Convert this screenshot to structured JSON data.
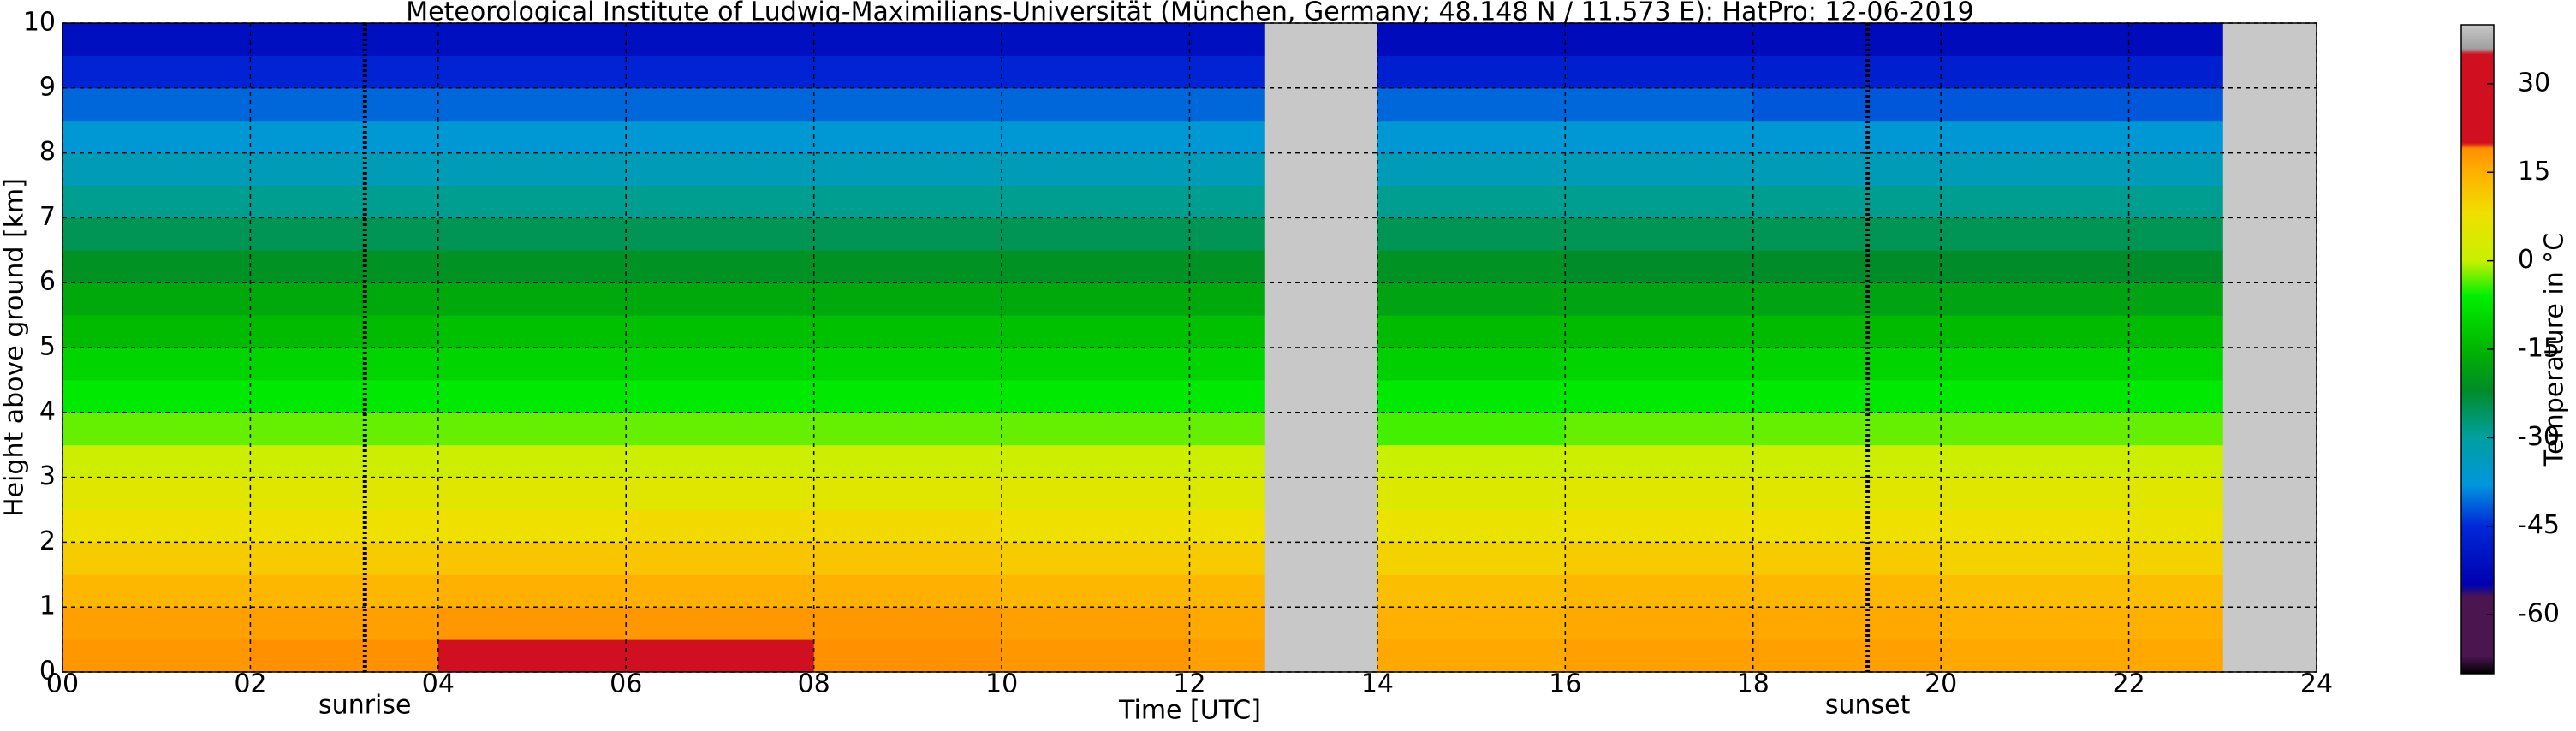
{
  "chart_data": {
    "type": "heatmap",
    "title": "Meteorological Institute of Ludwig-Maximilians-Universität (München, Germany; 48.148 N / 11.573 E):    HatPro: 12-06-2019",
    "xlabel": "Time [UTC]",
    "ylabel": "Height above ground [km]",
    "colorbar_label": "Temperature in °C",
    "x_bins": [
      0,
      2,
      4,
      6,
      8,
      10,
      12,
      12.8,
      14,
      16,
      18,
      20,
      22,
      23
    ],
    "y_bins": [
      0,
      0.5,
      1,
      1.5,
      2,
      2.5,
      3,
      3.5,
      4,
      4.5,
      5,
      5.5,
      6,
      6.5,
      7,
      7.5,
      8,
      8.5,
      9,
      9.5,
      10
    ],
    "z": [
      [
        18,
        19,
        20,
        20,
        19,
        18,
        17,
        null,
        16,
        17,
        17,
        16,
        16
      ],
      [
        17,
        17,
        18,
        18,
        18,
        17,
        16,
        null,
        15,
        16,
        16,
        15,
        15
      ],
      [
        14,
        14,
        15,
        15,
        15,
        14,
        14,
        null,
        13,
        14,
        14,
        13,
        13
      ],
      [
        11,
        11,
        12,
        12,
        12,
        11,
        11,
        null,
        10,
        11,
        11,
        10,
        10
      ],
      [
        8,
        8,
        8,
        9,
        9,
        8,
        8,
        null,
        7,
        8,
        8,
        8,
        7
      ],
      [
        5,
        5,
        5,
        5,
        5,
        5,
        4,
        null,
        4,
        5,
        5,
        5,
        5
      ],
      [
        1,
        1,
        1,
        1,
        1,
        1,
        1,
        null,
        0,
        1,
        1,
        1,
        1
      ],
      [
        -3,
        -3,
        -3,
        -3,
        -3,
        -3,
        -3,
        null,
        -4,
        -3,
        -3,
        -3,
        -3
      ],
      [
        -7,
        -7,
        -7,
        -7,
        -7,
        -7,
        -7,
        null,
        -7,
        -7,
        -7,
        -7,
        -7
      ],
      [
        -10,
        -10,
        -10,
        -10,
        -10,
        -10,
        -10,
        null,
        -11,
        -10,
        -10,
        -10,
        -10
      ],
      [
        -14,
        -14,
        -13,
        -13,
        -13,
        -13,
        -13,
        null,
        -14,
        -14,
        -14,
        -14,
        -14
      ],
      [
        -17,
        -17,
        -17,
        -17,
        -17,
        -17,
        -17,
        null,
        -18,
        -18,
        -18,
        -18,
        -18
      ],
      [
        -21,
        -21,
        -21,
        -21,
        -21,
        -21,
        -21,
        null,
        -21,
        -22,
        -22,
        -22,
        -22
      ],
      [
        -25,
        -25,
        -25,
        -25,
        -25,
        -25,
        -25,
        null,
        -25,
        -25,
        -25,
        -25,
        -25
      ],
      [
        -29,
        -29,
        -29,
        -29,
        -29,
        -29,
        -29,
        null,
        -29,
        -29,
        -29,
        -29,
        -29
      ],
      [
        -33,
        -33,
        -33,
        -33,
        -33,
        -33,
        -33,
        null,
        -33,
        -33,
        -33,
        -33,
        -33
      ],
      [
        -37,
        -37,
        -37,
        -37,
        -37,
        -37,
        -37,
        null,
        -37,
        -37,
        -37,
        -37,
        -37
      ],
      [
        -41,
        -41,
        -41,
        -41,
        -41,
        -41,
        -41,
        null,
        -41,
        -41,
        -42,
        -42,
        -42
      ],
      [
        -46,
        -46,
        -46,
        -46,
        -46,
        -46,
        -46,
        null,
        -47,
        -47,
        -47,
        -47,
        -47
      ],
      [
        -51,
        -51,
        -51,
        -51,
        -51,
        -51,
        -51,
        null,
        -52,
        -52,
        -52,
        -52,
        -52
      ]
    ],
    "xlim": [
      0,
      24
    ],
    "ylim": [
      0,
      10
    ],
    "xticks": [
      {
        "value": 0,
        "label": "00"
      },
      {
        "value": 2,
        "label": "02"
      },
      {
        "value": 4,
        "label": "04"
      },
      {
        "value": 6,
        "label": "06"
      },
      {
        "value": 8,
        "label": "08"
      },
      {
        "value": 10,
        "label": "10"
      },
      {
        "value": 12,
        "label": "12"
      },
      {
        "value": 14,
        "label": "14"
      },
      {
        "value": 16,
        "label": "16"
      },
      {
        "value": 18,
        "label": "18"
      },
      {
        "value": 20,
        "label": "20"
      },
      {
        "value": 22,
        "label": "22"
      },
      {
        "value": 24,
        "label": "24"
      }
    ],
    "yticks": [
      0,
      1,
      2,
      3,
      4,
      5,
      6,
      7,
      8,
      9,
      10
    ],
    "grid": true,
    "missing_color": "#c8c8c8",
    "clim": [
      -70,
      40
    ],
    "cbar_ticks": [
      30,
      15,
      0,
      -15,
      -30,
      -45,
      -60
    ],
    "colormap": [
      [
        -70,
        "#000000"
      ],
      [
        -67,
        "#4b1650"
      ],
      [
        -57,
        "#4b1650"
      ],
      [
        -55,
        "#0000b0"
      ],
      [
        -45,
        "#0028d8"
      ],
      [
        -38,
        "#0096dc"
      ],
      [
        -30,
        "#00a0a0"
      ],
      [
        -22,
        "#008c28"
      ],
      [
        -15,
        "#00b400"
      ],
      [
        -6,
        "#00f000"
      ],
      [
        0,
        "#c8f000"
      ],
      [
        8,
        "#f0e000"
      ],
      [
        15,
        "#ffb000"
      ],
      [
        19,
        "#ff9000"
      ],
      [
        20,
        "#d01020"
      ],
      [
        35,
        "#d01020"
      ],
      [
        36,
        "#a0a0a0"
      ],
      [
        40,
        "#c8c8c8"
      ]
    ],
    "annotations": [
      {
        "x": 3.22,
        "label": "sunrise"
      },
      {
        "x": 19.22,
        "label": "sunset"
      }
    ]
  }
}
